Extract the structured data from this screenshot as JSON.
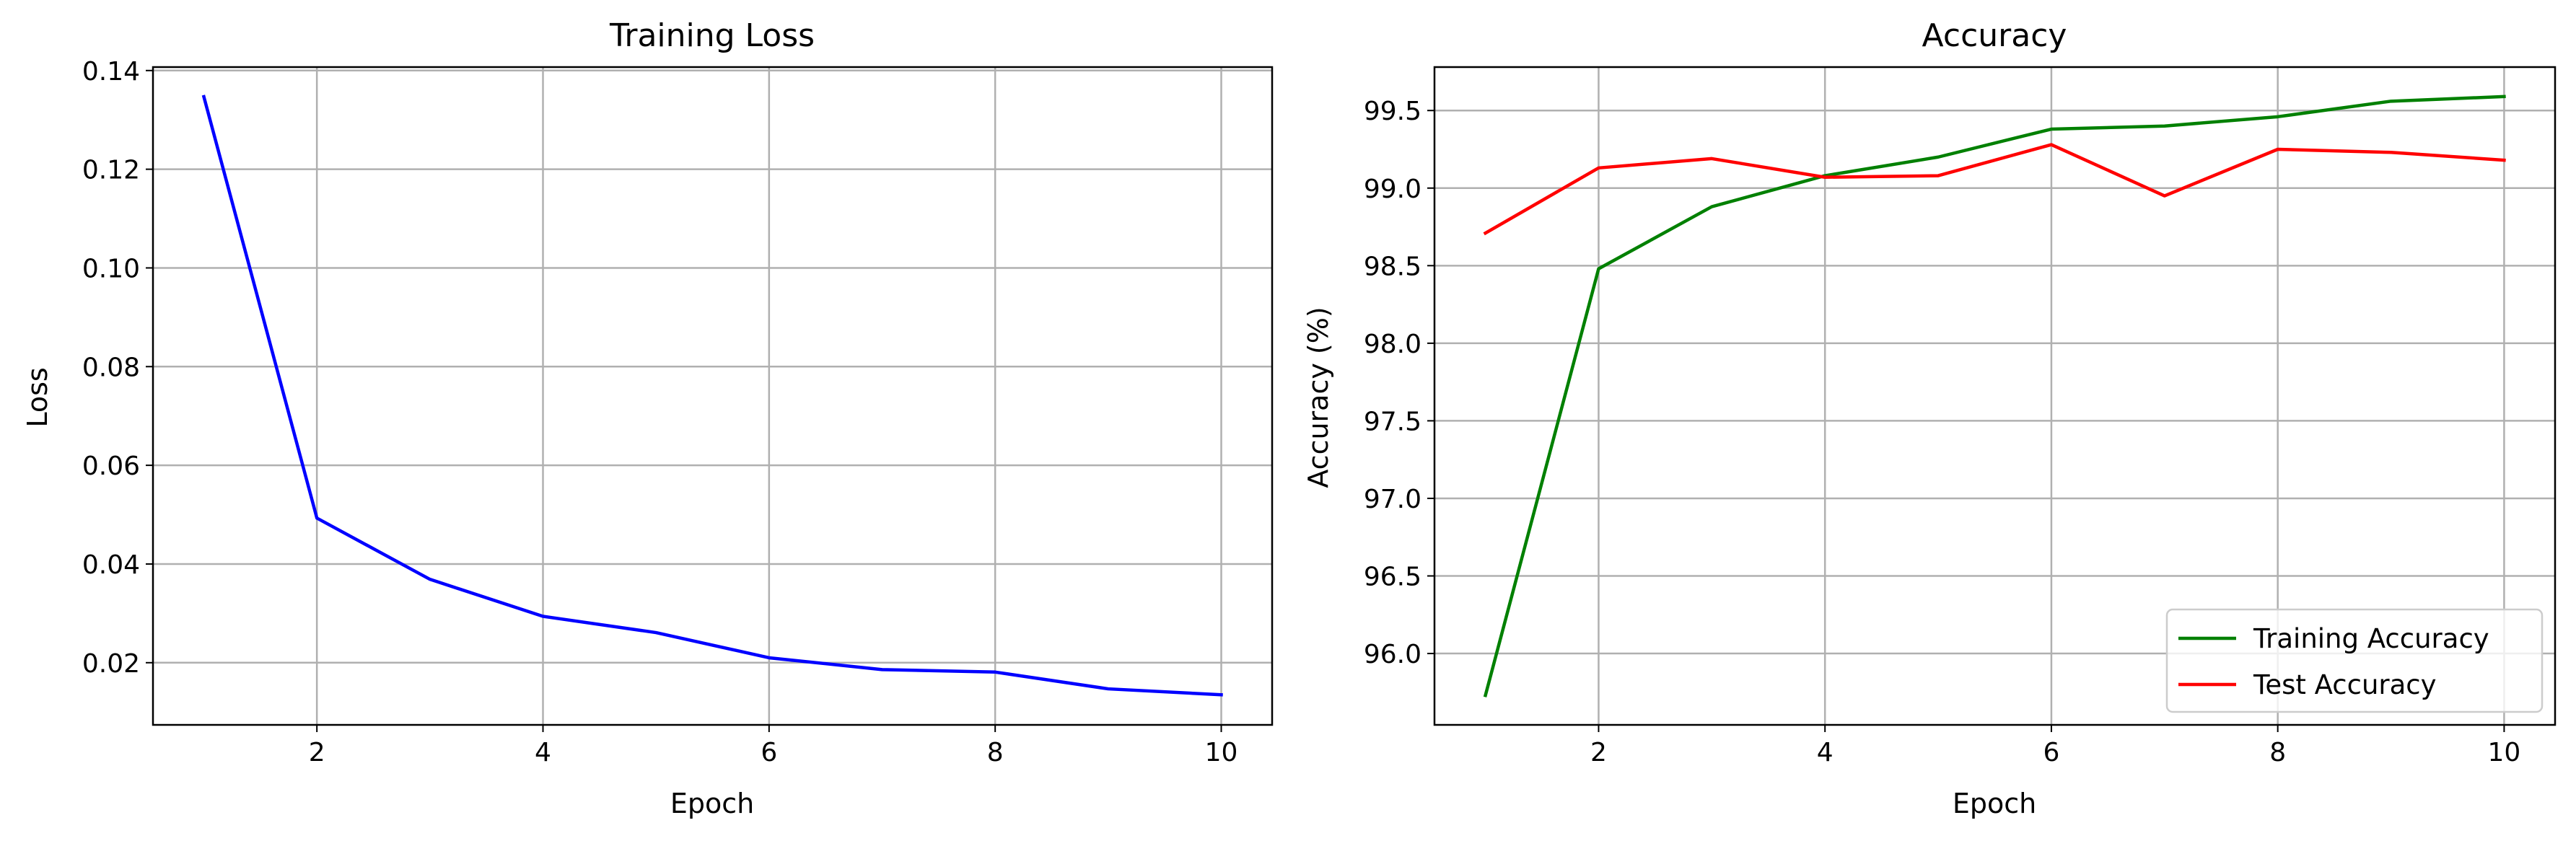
{
  "chart_data": [
    {
      "type": "line",
      "title": "Training Loss",
      "xlabel": "Epoch",
      "ylabel": "Loss",
      "x": [
        1,
        2,
        3,
        4,
        5,
        6,
        7,
        8,
        9,
        10
      ],
      "series": [
        {
          "values": [
            0.1347,
            0.0493,
            0.0369,
            0.0294,
            0.0261,
            0.021,
            0.0186,
            0.0181,
            0.0147,
            0.0135
          ],
          "color": "#0000ff"
        }
      ],
      "xlim": [
        0.55,
        10.45
      ],
      "ylim": [
        0.0074,
        0.1407
      ],
      "xticks": [
        2,
        4,
        6,
        8,
        10
      ],
      "xtick_labels": [
        "2",
        "4",
        "6",
        "8",
        "10"
      ],
      "yticks": [
        0.02,
        0.04,
        0.06,
        0.08,
        0.1,
        0.12,
        0.14
      ],
      "ytick_labels": [
        "0.02",
        "0.04",
        "0.06",
        "0.08",
        "0.10",
        "0.12",
        "0.14"
      ],
      "grid": true,
      "legend": null
    },
    {
      "type": "line",
      "title": "Accuracy",
      "xlabel": "Epoch",
      "ylabel": "Accuracy (%)",
      "x": [
        1,
        2,
        3,
        4,
        5,
        6,
        7,
        8,
        9,
        10
      ],
      "series": [
        {
          "name": "Training Accuracy",
          "values": [
            95.73,
            98.48,
            98.88,
            99.08,
            99.2,
            99.38,
            99.4,
            99.46,
            99.56,
            99.59
          ],
          "color": "#008000"
        },
        {
          "name": "Test Accuracy",
          "values": [
            98.71,
            99.13,
            99.19,
            99.07,
            99.08,
            99.28,
            98.95,
            99.25,
            99.23,
            99.18
          ],
          "color": "#ff0000"
        }
      ],
      "xlim": [
        0.55,
        10.45
      ],
      "ylim": [
        95.54,
        99.78
      ],
      "xticks": [
        2,
        4,
        6,
        8,
        10
      ],
      "xtick_labels": [
        "2",
        "4",
        "6",
        "8",
        "10"
      ],
      "yticks": [
        96.0,
        96.5,
        97.0,
        97.5,
        98.0,
        98.5,
        99.0,
        99.5
      ],
      "ytick_labels": [
        "96.0",
        "96.5",
        "97.0",
        "97.5",
        "98.0",
        "98.5",
        "99.0",
        "99.5"
      ],
      "grid": true,
      "legend": "lower-right"
    }
  ]
}
